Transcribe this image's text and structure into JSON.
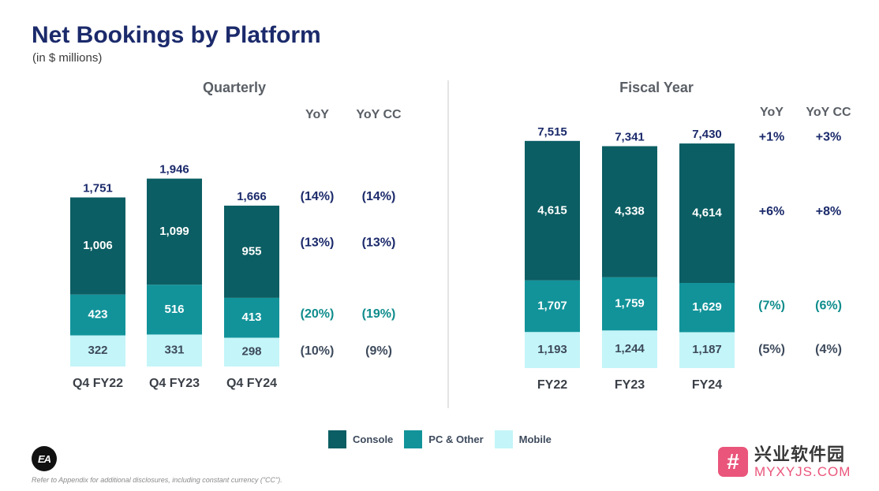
{
  "header": {
    "title": "Net Bookings by Platform",
    "subtitle": "(in $ millions)"
  },
  "chart_data": [
    {
      "type": "bar",
      "stacked": true,
      "title": "Quarterly",
      "categories": [
        "Q4 FY22",
        "Q4 FY23",
        "Q4 FY24"
      ],
      "series": [
        {
          "name": "Mobile",
          "values": [
            322,
            331,
            298
          ],
          "labels": [
            "322",
            "331",
            "298"
          ]
        },
        {
          "name": "PC & Other",
          "values": [
            423,
            516,
            413
          ],
          "labels": [
            "423",
            "516",
            "413"
          ]
        },
        {
          "name": "Console",
          "values": [
            1006,
            1099,
            955
          ],
          "labels": [
            "1,006",
            "1,099",
            "955"
          ]
        }
      ],
      "totals": [
        1751,
        1946,
        1666
      ],
      "total_labels": [
        "1,751",
        "1,946",
        "1,666"
      ],
      "yoy_headers": [
        "YoY",
        "YoY CC"
      ],
      "yoy_rows": {
        "Total": [
          "(14%)",
          "(14%)"
        ],
        "Console": [
          "(13%)",
          "(13%)"
        ],
        "PC & Other": [
          "(20%)",
          "(19%)"
        ],
        "Mobile": [
          "(10%)",
          "(9%)"
        ]
      },
      "ylim": [
        0,
        2000
      ]
    },
    {
      "type": "bar",
      "stacked": true,
      "title": "Fiscal Year",
      "categories": [
        "FY22",
        "FY23",
        "FY24"
      ],
      "series": [
        {
          "name": "Mobile",
          "values": [
            1193,
            1244,
            1187
          ],
          "labels": [
            "1,193",
            "1,244",
            "1,187"
          ]
        },
        {
          "name": "PC & Other",
          "values": [
            1707,
            1759,
            1629
          ],
          "labels": [
            "1,707",
            "1,759",
            "1,629"
          ]
        },
        {
          "name": "Console",
          "values": [
            4615,
            4338,
            4614
          ],
          "labels": [
            "4,615",
            "4,338",
            "4,614"
          ]
        }
      ],
      "totals": [
        7515,
        7341,
        7430
      ],
      "total_labels": [
        "7,515",
        "7,341",
        "7,430"
      ],
      "yoy_headers": [
        "YoY",
        "YoY CC"
      ],
      "yoy_rows": {
        "Total": [
          "+1%",
          "+3%"
        ],
        "Console": [
          "+6%",
          "+8%"
        ],
        "PC & Other": [
          "(7%)",
          "(6%)"
        ],
        "Mobile": [
          "(5%)",
          "(4%)"
        ]
      },
      "ylim": [
        0,
        7800
      ]
    }
  ],
  "legend": [
    {
      "name": "Console",
      "color": "#0b5e63"
    },
    {
      "name": "PC & Other",
      "color": "#12939a"
    },
    {
      "name": "Mobile",
      "color": "#c4f5f8"
    }
  ],
  "colors": {
    "console": "#0b5e63",
    "pc": "#12939a",
    "mobile": "#c4f5f8",
    "navy": "#1b2a6b",
    "teal_text": "#0f8c8c",
    "gray_text": "#3d4a5c"
  },
  "footer": {
    "logo": "EA",
    "footnote": "Refer to Appendix for additional disclosures, including constant currency (\"CC\")."
  },
  "watermark": {
    "icon_glyph": "#",
    "text_cn": "兴业软件园",
    "text_en": "MYXYJS.COM"
  }
}
